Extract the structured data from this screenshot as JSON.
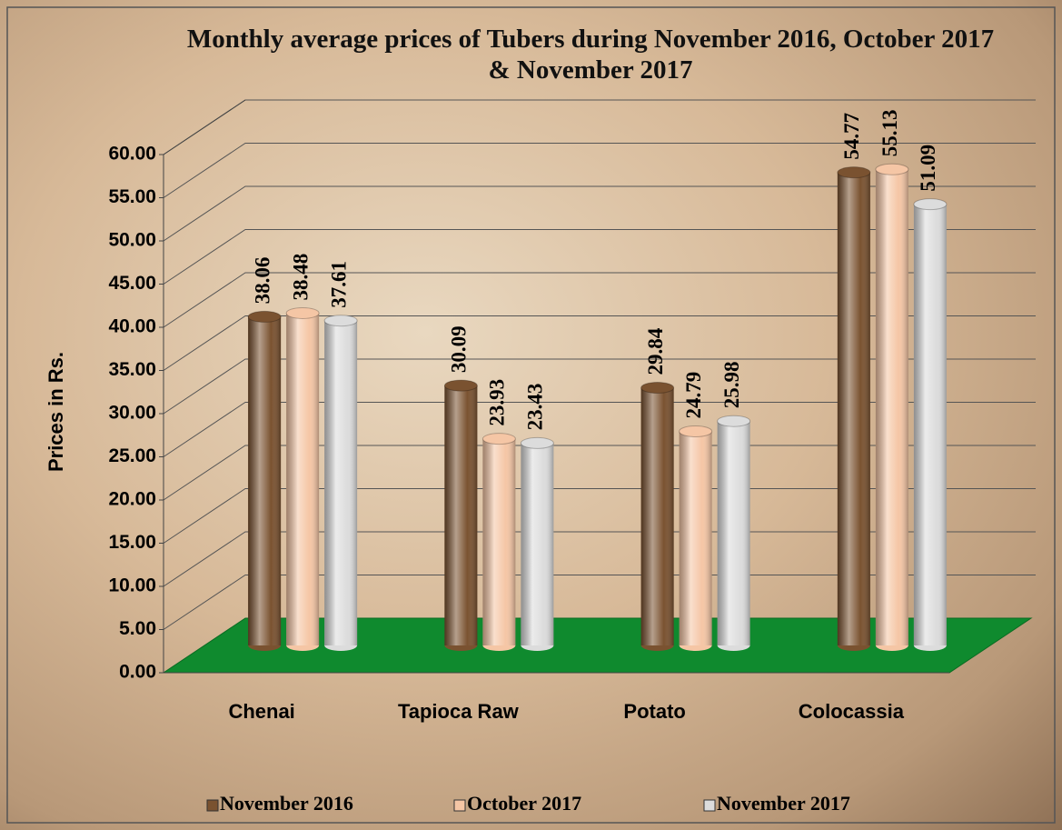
{
  "chart_data": {
    "type": "bar",
    "title": "Monthly average prices of Tubers during  November 2016, October 2017 & November  2017",
    "y_label": "Prices in Rs.",
    "categories": [
      "Chenai",
      "Tapioca Raw",
      "Potato",
      "Colocassia"
    ],
    "series": [
      {
        "name": "November 2016",
        "color": "#7a5230",
        "values": [
          38.06,
          30.09,
          29.84,
          54.77
        ]
      },
      {
        "name": "October 2017",
        "color": "#f5c6a5",
        "values": [
          38.48,
          23.93,
          24.79,
          55.13
        ]
      },
      {
        "name": "November 2017",
        "color": "#dcdcdc",
        "values": [
          37.61,
          23.43,
          25.98,
          51.09
        ]
      }
    ],
    "ylim": [
      0,
      60
    ],
    "yticks": [
      {
        "value": 0,
        "label": "0.00"
      },
      {
        "value": 5,
        "label": "5.00"
      },
      {
        "value": 10,
        "label": "10.00"
      },
      {
        "value": 15,
        "label": "15.00"
      },
      {
        "value": 20,
        "label": "20.00"
      },
      {
        "value": 25,
        "label": "25.00"
      },
      {
        "value": 30,
        "label": "30.00"
      },
      {
        "value": 35,
        "label": "35.00"
      },
      {
        "value": 40,
        "label": "40.00"
      },
      {
        "value": 45,
        "label": "45.00"
      },
      {
        "value": 50,
        "label": "50.00"
      },
      {
        "value": 55,
        "label": "55.00"
      },
      {
        "value": 60,
        "label": "60.00"
      }
    ],
    "grid": true,
    "legend": "bottom"
  }
}
